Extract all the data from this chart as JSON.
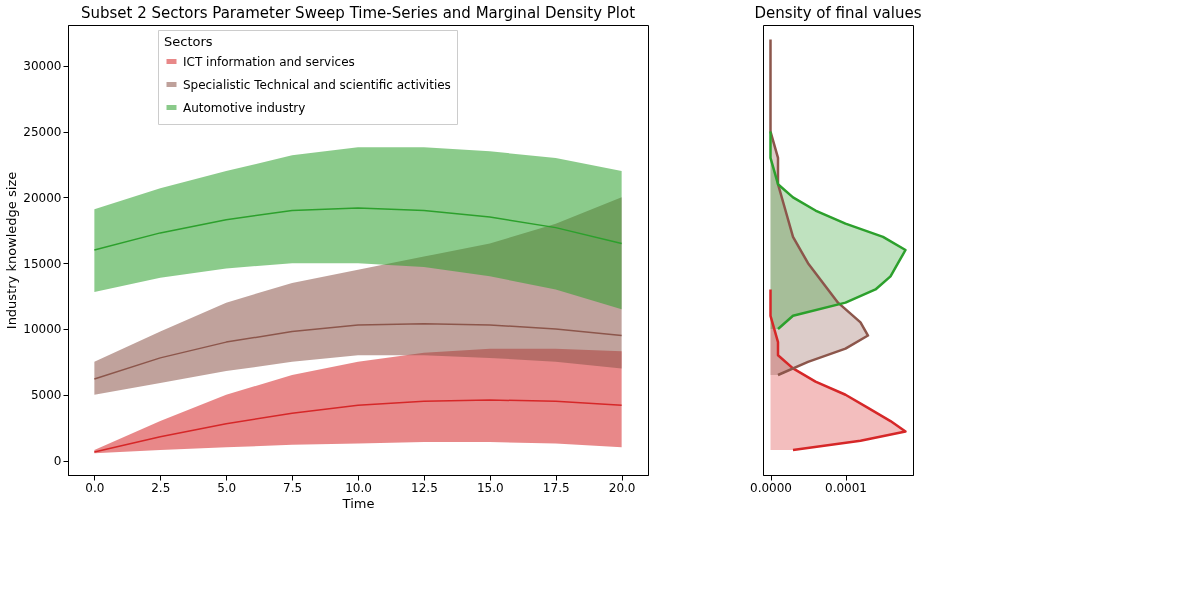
{
  "chart_data": [
    {
      "type": "line",
      "title": "Subset 2 Sectors Parameter Sweep Time-Series and Marginal Density Plot",
      "xlabel": "Time",
      "ylabel": "Industry knowledge size",
      "legend_title": "Sectors",
      "legend": "top left",
      "grid": false,
      "marker": "none",
      "line_style": "solid",
      "x": [
        0,
        2.5,
        5,
        7.5,
        10,
        12.5,
        15,
        17.5,
        20
      ],
      "xlim": [
        -1,
        21
      ],
      "xticks": [
        {
          "value": 0,
          "label": "0.0"
        },
        {
          "value": 2.5,
          "label": "2.5"
        },
        {
          "value": 5,
          "label": "5.0"
        },
        {
          "value": 7.5,
          "label": "7.5"
        },
        {
          "value": 10,
          "label": "10.0"
        },
        {
          "value": 12.5,
          "label": "12.5"
        },
        {
          "value": 15,
          "label": "15.0"
        },
        {
          "value": 17.5,
          "label": "17.5"
        },
        {
          "value": 20,
          "label": "20.0"
        }
      ],
      "ylim": [
        -1100,
        33100
      ],
      "yticks": [
        0,
        5000,
        10000,
        15000,
        20000,
        25000,
        30000
      ],
      "series": [
        {
          "name": "ICT information and services",
          "color": "#d62728",
          "values": [
            650,
            1800,
            2800,
            3600,
            4200,
            4500,
            4600,
            4500,
            4200
          ],
          "lower": [
            550,
            800,
            1000,
            1200,
            1300,
            1400,
            1400,
            1300,
            1000
          ],
          "upper": [
            800,
            3000,
            5000,
            6500,
            7500,
            8200,
            8500,
            8500,
            8300
          ]
        },
        {
          "name": "Specialistic Technical and scientific activities",
          "color": "#8c564b",
          "values": [
            6200,
            7800,
            9000,
            9800,
            10300,
            10400,
            10300,
            10000,
            9500
          ],
          "lower": [
            5000,
            5900,
            6800,
            7500,
            8000,
            8000,
            7800,
            7500,
            7000
          ],
          "upper": [
            7500,
            9800,
            12000,
            13500,
            14500,
            15500,
            16500,
            18000,
            20000
          ]
        },
        {
          "name": "Automotive industry",
          "color": "#2ca02c",
          "values": [
            16000,
            17300,
            18300,
            19000,
            19200,
            19000,
            18500,
            17700,
            16500
          ],
          "lower": [
            12800,
            13900,
            14600,
            15000,
            15000,
            14700,
            14000,
            13000,
            11500
          ],
          "upper": [
            19100,
            20700,
            22000,
            23200,
            23800,
            23800,
            23500,
            23000,
            22000
          ]
        }
      ]
    },
    {
      "type": "area",
      "orientation": "horizontal",
      "title": "Density of final values",
      "grid": false,
      "tick_labels": "x",
      "xlim": [
        -1e-05,
        0.00019
      ],
      "xticks": [
        {
          "value": 0,
          "label": "0.0000"
        },
        {
          "value": 0.0001,
          "label": "0.0001"
        }
      ],
      "ylim": [
        -1100,
        33100
      ],
      "series": [
        {
          "color": "#d62728",
          "x": [
            800,
            1500,
            2200,
            3000,
            4000,
            5000,
            6000,
            7000,
            8000,
            9000,
            11000,
            13000
          ],
          "values": [
            3e-05,
            0.00012,
            0.00018,
            0.00016,
            0.00013,
            0.0001,
            6e-05,
            3e-05,
            1e-05,
            1e-05,
            0,
            0
          ]
        },
        {
          "color": "#8c564b",
          "x": [
            6500,
            7500,
            8500,
            9500,
            10500,
            12000,
            13500,
            15000,
            17000,
            19000,
            21000,
            23000,
            25000,
            28000,
            32000
          ],
          "values": [
            1e-05,
            5e-05,
            0.0001,
            0.00013,
            0.00012,
            9e-05,
            7e-05,
            5e-05,
            3e-05,
            2e-05,
            1e-05,
            1e-05,
            0,
            0,
            0
          ]
        },
        {
          "color": "#2ca02c",
          "x": [
            10000,
            11000,
            12000,
            13000,
            14000,
            15000,
            16000,
            17000,
            18000,
            19000,
            20000,
            21000,
            23000,
            25000
          ],
          "values": [
            1e-05,
            3e-05,
            0.0001,
            0.00014,
            0.00016,
            0.00017,
            0.00018,
            0.00015,
            0.0001,
            6e-05,
            3e-05,
            1e-05,
            0,
            0
          ]
        }
      ]
    }
  ]
}
